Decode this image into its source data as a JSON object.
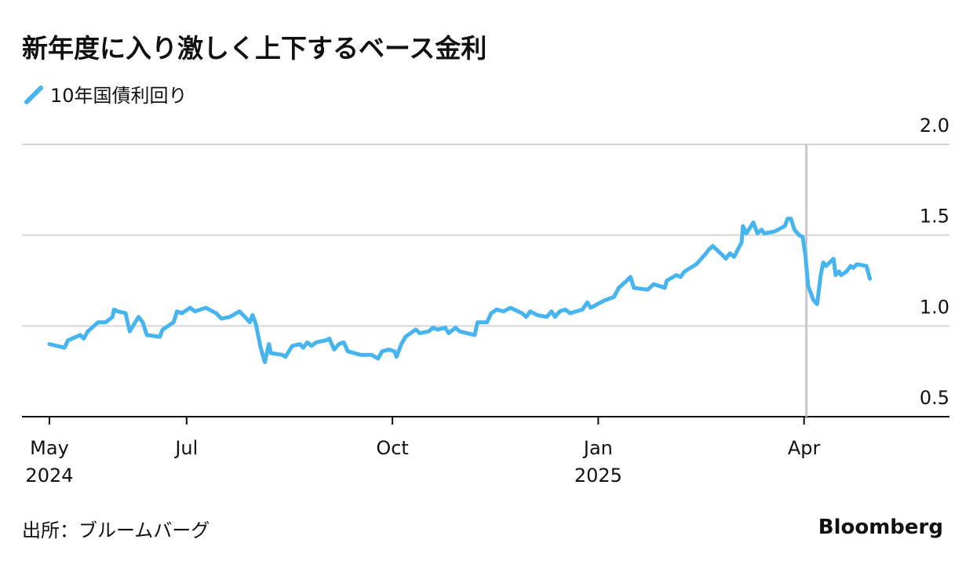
{
  "chart_data": {
    "type": "line",
    "title": "新年度に入り激しく上下するベース金利",
    "source": "出所：ブルームバーグ",
    "brand": "Bloomberg",
    "x": [
      0.0,
      0.22,
      0.27,
      0.45,
      0.5,
      0.56,
      0.71,
      0.82,
      0.92,
      0.94,
      1.0,
      1.11,
      1.17,
      1.22,
      1.3,
      1.36,
      1.42,
      1.61,
      1.65,
      1.81,
      1.86,
      1.93,
      2.05,
      2.12,
      2.28,
      2.43,
      2.51,
      2.63,
      2.77,
      2.85,
      2.92,
      2.96,
      3.01,
      3.08,
      3.14,
      3.2,
      3.23,
      3.4,
      3.44,
      3.54,
      3.65,
      3.7,
      3.76,
      3.82,
      3.89,
      4.03,
      4.08,
      4.15,
      4.22,
      4.29,
      4.35,
      4.54,
      4.7,
      4.79,
      4.85,
      4.95,
      5.03,
      5.06,
      5.13,
      5.19,
      5.34,
      5.4,
      5.53,
      5.59,
      5.66,
      5.77,
      5.82,
      5.92,
      5.98,
      6.2,
      6.24,
      6.38,
      6.44,
      6.52,
      6.62,
      6.72,
      6.89,
      6.95,
      7.01,
      7.11,
      7.25,
      7.32,
      7.37,
      7.44,
      7.52,
      7.59,
      7.77,
      7.84,
      7.89,
      8.09,
      8.23,
      8.3,
      8.39,
      8.47,
      8.52,
      8.72,
      8.81,
      8.97,
      9.0,
      9.14,
      9.2,
      9.26,
      9.43,
      9.55,
      9.61,
      9.67,
      9.81,
      9.86,
      9.92,
      9.98,
      10.09,
      10.11,
      10.16,
      10.26,
      10.32,
      10.38,
      10.42,
      10.57,
      10.72,
      10.76,
      10.81,
      10.86,
      10.93,
      10.98,
      11.02,
      11.06,
      11.14,
      11.19,
      11.24,
      11.28,
      11.32,
      11.43,
      11.46,
      11.51,
      11.54,
      11.62,
      11.68,
      11.72,
      11.77,
      11.91,
      11.96
    ],
    "series": [
      {
        "name": "10年国債利回り",
        "color": "#45b4ef",
        "values": [
          0.9,
          0.88,
          0.92,
          0.95,
          0.93,
          0.97,
          1.02,
          1.02,
          1.05,
          1.09,
          1.08,
          1.07,
          0.97,
          1.0,
          1.05,
          1.02,
          0.95,
          0.94,
          0.98,
          1.02,
          1.08,
          1.07,
          1.1,
          1.08,
          1.1,
          1.07,
          1.04,
          1.05,
          1.08,
          1.05,
          1.02,
          1.06,
          1.01,
          0.88,
          0.8,
          0.9,
          0.85,
          0.84,
          0.83,
          0.89,
          0.9,
          0.88,
          0.91,
          0.89,
          0.91,
          0.92,
          0.93,
          0.87,
          0.9,
          0.91,
          0.86,
          0.84,
          0.84,
          0.82,
          0.86,
          0.87,
          0.86,
          0.83,
          0.9,
          0.94,
          0.98,
          0.96,
          0.97,
          0.99,
          0.98,
          0.99,
          0.96,
          0.99,
          0.97,
          0.95,
          1.02,
          1.02,
          1.07,
          1.09,
          1.08,
          1.1,
          1.07,
          1.05,
          1.08,
          1.06,
          1.05,
          1.08,
          1.05,
          1.08,
          1.09,
          1.07,
          1.09,
          1.13,
          1.1,
          1.14,
          1.16,
          1.21,
          1.24,
          1.27,
          1.21,
          1.2,
          1.23,
          1.21,
          1.25,
          1.28,
          1.27,
          1.3,
          1.34,
          1.39,
          1.42,
          1.44,
          1.39,
          1.37,
          1.4,
          1.38,
          1.46,
          1.55,
          1.51,
          1.57,
          1.51,
          1.53,
          1.51,
          1.52,
          1.55,
          1.59,
          1.59,
          1.53,
          1.5,
          1.49,
          1.39,
          1.22,
          1.14,
          1.12,
          1.27,
          1.35,
          1.33,
          1.37,
          1.28,
          1.3,
          1.28,
          1.3,
          1.33,
          1.32,
          1.34,
          1.33,
          1.26
        ]
      }
    ],
    "xlim": [
      -0.4,
      13.12
    ],
    "xticks": [
      {
        "value": 0,
        "label": "May",
        "year": "2024"
      },
      {
        "value": 2,
        "label": "Jul"
      },
      {
        "value": 5,
        "label": "Oct"
      },
      {
        "value": 8,
        "label": "Jan",
        "year": "2025"
      },
      {
        "value": 11,
        "label": "Apr"
      }
    ],
    "ylim": [
      0.5,
      2.0
    ],
    "yticks": [
      0.5,
      {
        "value": 1,
        "label": "1.0"
      },
      1.5,
      {
        "value": 2,
        "label": "2.0"
      }
    ],
    "vline": 11,
    "grid": true
  }
}
